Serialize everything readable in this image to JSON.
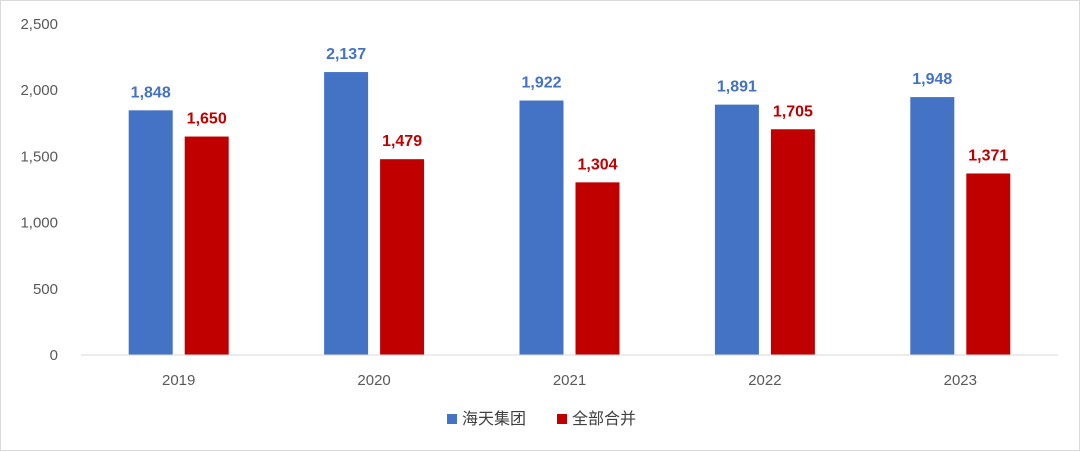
{
  "chart_data": {
    "type": "bar",
    "categories": [
      "2019",
      "2020",
      "2021",
      "2022",
      "2023"
    ],
    "series": [
      {
        "name": "海天集团",
        "values": [
          1848,
          2137,
          1922,
          1891,
          1948
        ],
        "color": "#4472C4",
        "label_color": "#4472C4"
      },
      {
        "name": "全部合并",
        "values": [
          1650,
          1479,
          1304,
          1705,
          1371
        ],
        "color": "#C00000",
        "label_color": "#C00000"
      }
    ],
    "y_ticks": [
      "0",
      "500",
      "1,000",
      "1,500",
      "2,000",
      "2,500"
    ],
    "ylim": [
      0,
      2500
    ],
    "y_tick_step": 500,
    "grid": false,
    "legend_position": "bottom",
    "title": "",
    "xlabel": "",
    "ylabel": ""
  }
}
